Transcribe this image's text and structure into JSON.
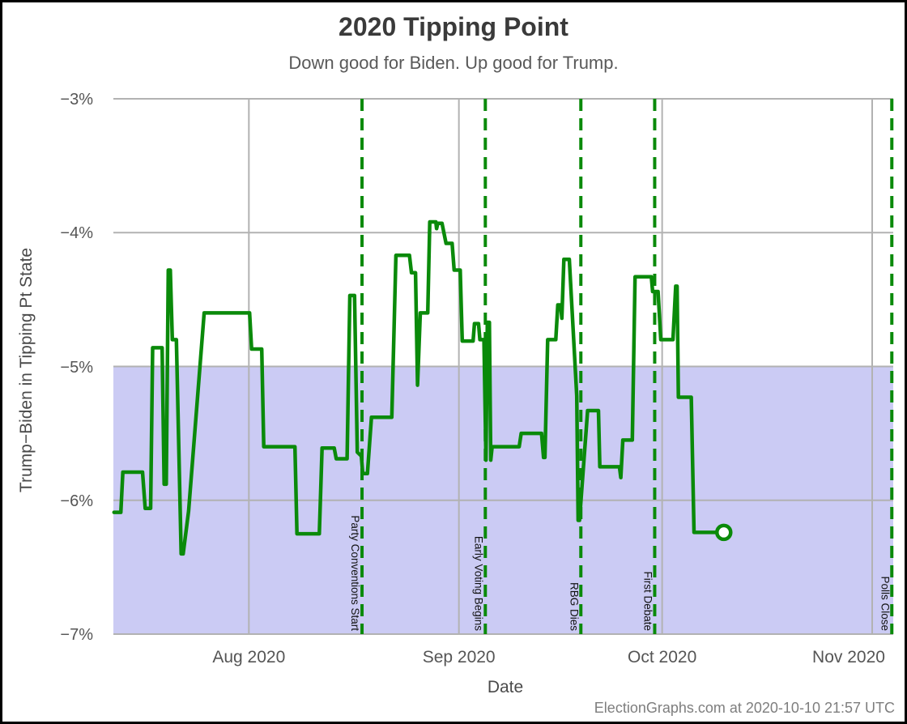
{
  "page": {
    "title": "2020 Tipping Point",
    "subtitle": "Down good for Biden. Up good for Trump.",
    "footer": "ElectionGraphs.com at 2020-10-10 21:57 UTC"
  },
  "x_axis": {
    "label": "Date",
    "ticks": [
      {
        "label": "Aug 2020",
        "day": 20
      },
      {
        "label": "Sep 2020",
        "day": 51
      },
      {
        "label": "Oct 2020",
        "day": 81
      },
      {
        "label": "Nov 2020",
        "day": 112
      }
    ]
  },
  "y_axis": {
    "label": "Trump−Biden in Tipping Pt State",
    "ticks": [
      {
        "label": "−3%",
        "value": -3
      },
      {
        "label": "−4%",
        "value": -4
      },
      {
        "label": "−5%",
        "value": -5
      },
      {
        "label": "−6%",
        "value": -6
      },
      {
        "label": "−7%",
        "value": -7
      }
    ]
  },
  "colors": {
    "line_green": "#0a8a0a",
    "band_lavender": "#cbcbf4",
    "gridline_gray": "#b2b2b2",
    "annotation_text": "#111111",
    "marker_fill": "#ffffff"
  },
  "chart_data": {
    "type": "line",
    "title": "2020 Tipping Point",
    "subtitle": "Down good for Biden. Up good for Trump.",
    "xlabel": "Date",
    "ylabel": "Trump−Biden in Tipping Pt State",
    "ylim": [
      -7,
      -3
    ],
    "grid": true,
    "x_epoch_day0": "2020-07-12",
    "x_day_range": [
      0,
      115.2
    ],
    "shaded_band": {
      "y_from": -7,
      "y_to": -5,
      "color": "#cbcbf4"
    },
    "event_lines": [
      {
        "label": "Party Conventions Start",
        "day": 36.7,
        "date": "2020-08-17"
      },
      {
        "label": "Early Voting Begins",
        "day": 54.9,
        "date": "2020-09-04"
      },
      {
        "label": "RBG Dies",
        "day": 69.0,
        "date": "2020-09-18"
      },
      {
        "label": "First Debate",
        "day": 79.9,
        "date": "2020-09-29"
      },
      {
        "label": "Polls Close",
        "day": 114.9,
        "date": "2020-11-03"
      }
    ],
    "end_marker": {
      "day": 90.1,
      "value": -6.24,
      "date": "2020-10-10"
    },
    "series": [
      {
        "name": "Trump−Biden margin in tipping point state",
        "color": "#0a8a0a",
        "points": [
          [
            0.1,
            -6.09
          ],
          [
            1.1,
            -6.09
          ],
          [
            1.4,
            -5.79
          ],
          [
            4.3,
            -5.79
          ],
          [
            4.7,
            -6.06
          ],
          [
            5.5,
            -6.06
          ],
          [
            5.8,
            -4.86
          ],
          [
            7.2,
            -4.86
          ],
          [
            7.5,
            -5.88
          ],
          [
            7.8,
            -5.88
          ],
          [
            8.1,
            -4.28
          ],
          [
            8.4,
            -4.28
          ],
          [
            8.7,
            -4.8
          ],
          [
            9.3,
            -4.8
          ],
          [
            10.0,
            -6.4
          ],
          [
            10.3,
            -6.4
          ],
          [
            11.1,
            -6.08
          ],
          [
            13.4,
            -4.6
          ],
          [
            20.1,
            -4.6
          ],
          [
            20.4,
            -4.87
          ],
          [
            21.9,
            -4.87
          ],
          [
            22.2,
            -5.6
          ],
          [
            26.8,
            -5.6
          ],
          [
            27.1,
            -6.25
          ],
          [
            30.4,
            -6.25
          ],
          [
            30.8,
            -5.61
          ],
          [
            32.6,
            -5.61
          ],
          [
            32.9,
            -5.69
          ],
          [
            34.5,
            -5.69
          ],
          [
            34.9,
            -4.47
          ],
          [
            35.6,
            -4.47
          ],
          [
            36.0,
            -5.64
          ],
          [
            36.6,
            -5.67
          ],
          [
            36.8,
            -5.8
          ],
          [
            37.5,
            -5.8
          ],
          [
            38.1,
            -5.38
          ],
          [
            41.1,
            -5.38
          ],
          [
            41.7,
            -4.17
          ],
          [
            43.7,
            -4.17
          ],
          [
            44.0,
            -4.3
          ],
          [
            44.6,
            -4.3
          ],
          [
            44.9,
            -5.14
          ],
          [
            45.3,
            -4.6
          ],
          [
            46.4,
            -4.6
          ],
          [
            46.7,
            -3.92
          ],
          [
            47.6,
            -3.92
          ],
          [
            47.7,
            -3.97
          ],
          [
            47.9,
            -3.93
          ],
          [
            48.5,
            -3.93
          ],
          [
            49.1,
            -4.08
          ],
          [
            50.0,
            -4.08
          ],
          [
            50.3,
            -4.28
          ],
          [
            51.2,
            -4.28
          ],
          [
            51.5,
            -4.81
          ],
          [
            53.1,
            -4.81
          ],
          [
            53.3,
            -4.68
          ],
          [
            53.9,
            -4.68
          ],
          [
            54.1,
            -4.8
          ],
          [
            54.7,
            -4.8
          ],
          [
            55.0,
            -5.7
          ],
          [
            55.2,
            -4.67
          ],
          [
            55.5,
            -4.67
          ],
          [
            55.7,
            -5.7
          ],
          [
            55.9,
            -5.6
          ],
          [
            59.9,
            -5.6
          ],
          [
            60.2,
            -5.5
          ],
          [
            63.2,
            -5.5
          ],
          [
            63.5,
            -5.68
          ],
          [
            63.7,
            -5.68
          ],
          [
            64.1,
            -4.8
          ],
          [
            65.3,
            -4.8
          ],
          [
            65.6,
            -4.54
          ],
          [
            66.0,
            -4.54
          ],
          [
            66.2,
            -4.64
          ],
          [
            66.5,
            -4.2
          ],
          [
            67.3,
            -4.2
          ],
          [
            68.4,
            -5.22
          ],
          [
            68.6,
            -6.15
          ],
          [
            68.8,
            -6.15
          ],
          [
            70.0,
            -5.33
          ],
          [
            71.6,
            -5.33
          ],
          [
            71.8,
            -5.75
          ],
          [
            74.7,
            -5.75
          ],
          [
            74.9,
            -5.83
          ],
          [
            75.2,
            -5.55
          ],
          [
            76.6,
            -5.55
          ],
          [
            77.0,
            -4.33
          ],
          [
            79.4,
            -4.33
          ],
          [
            79.6,
            -4.44
          ],
          [
            80.4,
            -4.44
          ],
          [
            80.8,
            -4.8
          ],
          [
            82.6,
            -4.8
          ],
          [
            83.0,
            -4.4
          ],
          [
            83.2,
            -4.4
          ],
          [
            83.4,
            -5.23
          ],
          [
            85.3,
            -5.23
          ],
          [
            85.7,
            -6.24
          ],
          [
            89.9,
            -6.24
          ]
        ]
      }
    ]
  }
}
